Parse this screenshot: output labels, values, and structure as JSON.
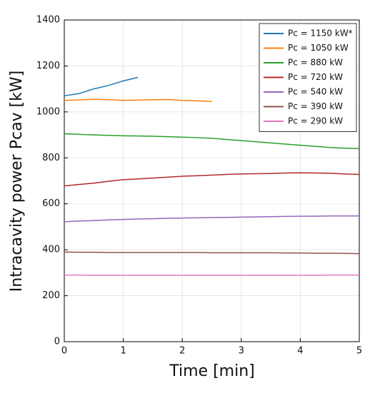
{
  "chart_data": {
    "type": "line",
    "xlabel": "Time [min]",
    "ylabel": "Intracavity power Pcav [kW]",
    "x": [
      0,
      0.25,
      0.5,
      0.75,
      1,
      1.25,
      1.5,
      1.75,
      2,
      2.25,
      2.5,
      2.75,
      3,
      3.25,
      3.5,
      3.75,
      4,
      4.25,
      4.5,
      4.75,
      5
    ],
    "series": [
      {
        "name": "Pc = 1150 kW*",
        "color": "#1f77b4",
        "values": [
          1070,
          1080,
          1100,
          1115,
          1135,
          1150,
          null,
          null,
          null,
          null,
          null,
          null,
          null,
          null,
          null,
          null,
          null,
          null,
          null,
          null,
          null
        ]
      },
      {
        "name": "Pc = 1050 kW",
        "color": "#ff7f0e",
        "values": [
          1050,
          1052,
          1055,
          1053,
          1050,
          1051,
          1053,
          1054,
          1050,
          1048,
          1045,
          null,
          null,
          null,
          null,
          null,
          null,
          null,
          null,
          null,
          null
        ]
      },
      {
        "name": "Pc = 880 kW",
        "color": "#2ca02c",
        "values": [
          905,
          902,
          900,
          898,
          896,
          895,
          894,
          892,
          890,
          888,
          885,
          880,
          875,
          870,
          865,
          860,
          855,
          850,
          845,
          842,
          840
        ]
      },
      {
        "name": "Pc = 720 kW",
        "color": "#b22a2a",
        "values": [
          678,
          684,
          690,
          698,
          705,
          708,
          712,
          716,
          720,
          722,
          725,
          728,
          730,
          731,
          732,
          734,
          735,
          734,
          733,
          730,
          728
        ]
      },
      {
        "name": "Pc = 540 kW",
        "color": "#9467bd",
        "values": [
          522,
          525,
          527,
          530,
          532,
          534,
          535,
          537,
          538,
          539,
          540,
          541,
          542,
          543,
          544,
          545,
          546,
          546,
          547,
          547,
          547
        ]
      },
      {
        "name": "Pc = 390 kW",
        "color": "#8c564b",
        "values": [
          390,
          389,
          389,
          388,
          388,
          388,
          388,
          388,
          388,
          388,
          387,
          387,
          387,
          387,
          387,
          386,
          386,
          385,
          385,
          384,
          383
        ]
      },
      {
        "name": "Pc = 290 kW",
        "color": "#e377c2",
        "values": [
          290,
          290,
          289,
          289,
          289,
          289,
          289,
          289,
          289,
          289,
          289,
          289,
          289,
          289,
          289,
          289,
          289,
          289,
          290,
          290,
          290
        ]
      }
    ],
    "xlim": [
      0,
      5
    ],
    "xticks": [
      0,
      1,
      2,
      3,
      4,
      5
    ],
    "ylim": [
      0,
      1400
    ],
    "yticks": [
      0,
      200,
      400,
      600,
      800,
      1000,
      1200,
      1400
    ],
    "grid": true,
    "legend": "upper right"
  }
}
